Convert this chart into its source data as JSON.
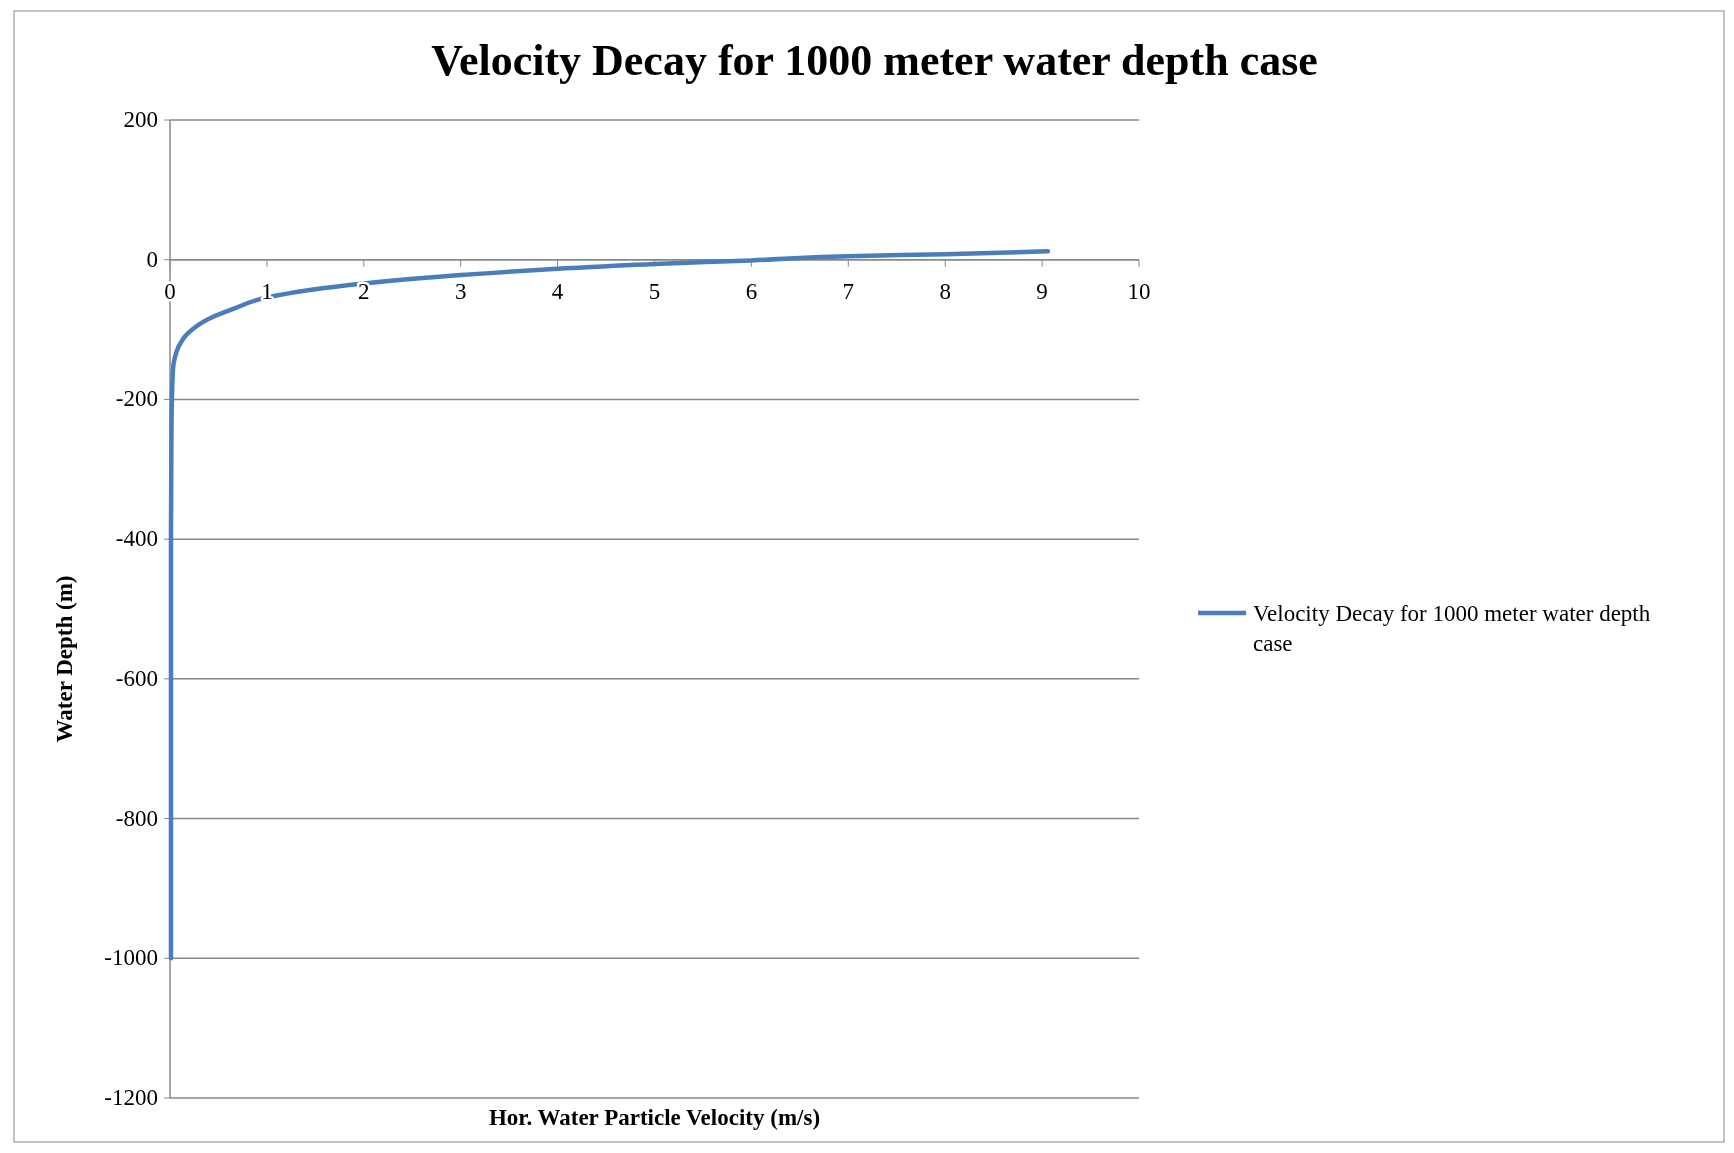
{
  "chart_data": {
    "type": "line",
    "title": "Velocity Decay for 1000 meter water depth case",
    "xlabel": "Hor. Water Particle Velocity (m/s)",
    "ylabel": "Water Depth (m)",
    "xlim": [
      0,
      10
    ],
    "xticks": [
      0,
      1,
      2,
      3,
      4,
      5,
      6,
      7,
      8,
      9,
      10
    ],
    "ylim": [
      -1200,
      200
    ],
    "yticks": [
      -1200,
      -1000,
      -800,
      -600,
      -400,
      -200,
      0,
      200
    ],
    "grid": "y",
    "legend": "right",
    "marker": "none",
    "line_style": "solid",
    "series": [
      {
        "name": "Velocity Decay for 1000 meter water depth case",
        "color": "#4a7ebb",
        "x": [
          0.01,
          0.01,
          0.01,
          0.01,
          0.015,
          0.03,
          0.05,
          0.087,
          0.186,
          0.424,
          0.66,
          1,
          2,
          3,
          4,
          5,
          6,
          7,
          8,
          9.06
        ],
        "values": [
          -1000,
          -800,
          -600,
          -400,
          -240,
          -158,
          -140,
          -125,
          -105,
          -83,
          -70,
          -54,
          -34,
          -22,
          -13,
          -6,
          -1,
          5,
          8,
          12
        ]
      }
    ]
  }
}
